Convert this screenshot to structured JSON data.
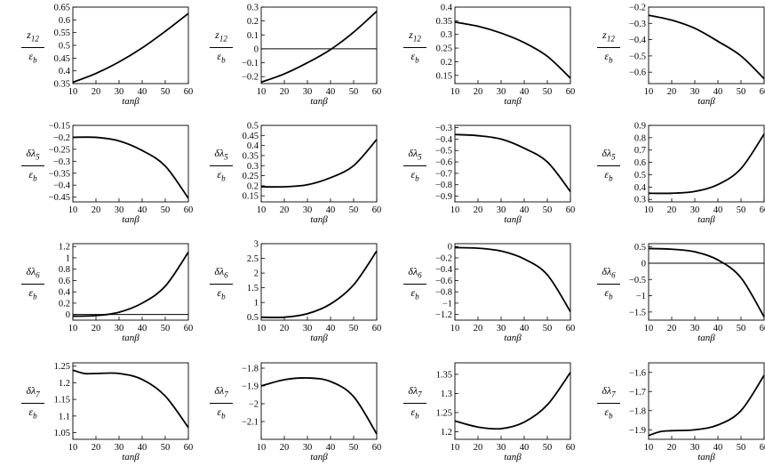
{
  "chart_data": [
    {
      "type": "line",
      "ylabel_num": "z12",
      "ylabel_den": "εb",
      "xlabel": "tanβ",
      "xlim": [
        10,
        60
      ],
      "ylim": [
        0.35,
        0.65
      ],
      "yticks": [
        "0.35",
        "0.4",
        "0.45",
        "0.5",
        "0.55",
        "0.6",
        "0.65"
      ],
      "xticks": [
        "10",
        "20",
        "30",
        "40",
        "50",
        "60"
      ],
      "zero_line": false,
      "x": [
        10,
        20,
        30,
        40,
        50,
        60
      ],
      "y": [
        0.355,
        0.39,
        0.435,
        0.49,
        0.555,
        0.625
      ]
    },
    {
      "type": "line",
      "ylabel_num": "z12",
      "ylabel_den": "εb",
      "xlabel": "tanβ",
      "xlim": [
        10,
        60
      ],
      "ylim": [
        -0.25,
        0.3
      ],
      "yticks": [
        "-0.2",
        "-0.1",
        "0",
        "0.1",
        "0.2",
        "0.3"
      ],
      "xticks": [
        "10",
        "20",
        "30",
        "40",
        "50",
        "60"
      ],
      "zero_line": true,
      "x": [
        10,
        20,
        30,
        40,
        50,
        60
      ],
      "y": [
        -0.24,
        -0.18,
        -0.1,
        -0.005,
        0.12,
        0.27
      ]
    },
    {
      "type": "line",
      "ylabel_num": "z12",
      "ylabel_den": "εb",
      "xlabel": "tanβ",
      "xlim": [
        10,
        60
      ],
      "ylim": [
        0.12,
        0.4
      ],
      "yticks": [
        "0.15",
        "0.2",
        "0.25",
        "0.3",
        "0.35",
        "0.4"
      ],
      "xticks": [
        "10",
        "20",
        "30",
        "40",
        "50",
        "60"
      ],
      "zero_line": false,
      "x": [
        10,
        20,
        30,
        40,
        50,
        60
      ],
      "y": [
        0.345,
        0.33,
        0.305,
        0.27,
        0.22,
        0.14
      ]
    },
    {
      "type": "line",
      "ylabel_num": "z12",
      "ylabel_den": "εb",
      "xlabel": "tanβ",
      "xlim": [
        10,
        60
      ],
      "ylim": [
        -0.67,
        -0.2
      ],
      "yticks": [
        "-0.2",
        "-0.3",
        "-0.4",
        "-0.5",
        "-0.6"
      ],
      "xticks": [
        "10",
        "20",
        "30",
        "40",
        "50",
        "60"
      ],
      "zero_line": false,
      "x": [
        10,
        20,
        30,
        40,
        50,
        60
      ],
      "y": [
        -0.25,
        -0.28,
        -0.33,
        -0.41,
        -0.5,
        -0.64
      ]
    },
    {
      "type": "line",
      "ylabel_num": "δλ5",
      "ylabel_den": "εb",
      "xlabel": "tanβ",
      "xlim": [
        10,
        60
      ],
      "ylim": [
        -0.47,
        -0.15
      ],
      "yticks": [
        "-0.15",
        "-0.2",
        "-0.25",
        "-0.3",
        "-0.35",
        "-0.4",
        "-0.45"
      ],
      "xticks": [
        "10",
        "20",
        "30",
        "40",
        "50",
        "60"
      ],
      "zero_line": false,
      "x": [
        10,
        20,
        30,
        40,
        50,
        60
      ],
      "y": [
        -0.2,
        -0.2,
        -0.215,
        -0.255,
        -0.32,
        -0.455
      ]
    },
    {
      "type": "line",
      "ylabel_num": "δλ5",
      "ylabel_den": "εb",
      "xlabel": "tanβ",
      "xlim": [
        10,
        60
      ],
      "ylim": [
        0.12,
        0.5
      ],
      "yticks": [
        "0.15",
        "0.2",
        "0.25",
        "0.3",
        "0.35",
        "0.4",
        "0.45",
        "0.5"
      ],
      "xticks": [
        "10",
        "20",
        "30",
        "40",
        "50",
        "60"
      ],
      "zero_line": false,
      "x": [
        10,
        20,
        30,
        40,
        50,
        60
      ],
      "y": [
        0.195,
        0.195,
        0.205,
        0.24,
        0.3,
        0.43
      ]
    },
    {
      "type": "line",
      "ylabel_num": "δλ5",
      "ylabel_den": "εb",
      "xlabel": "tanβ",
      "xlim": [
        10,
        60
      ],
      "ylim": [
        -0.95,
        -0.28
      ],
      "yticks": [
        "-0.3",
        "-0.4",
        "-0.5",
        "-0.6",
        "-0.7",
        "-0.8",
        "-0.9"
      ],
      "xticks": [
        "10",
        "20",
        "30",
        "40",
        "50",
        "60"
      ],
      "zero_line": false,
      "x": [
        10,
        20,
        30,
        40,
        50,
        60
      ],
      "y": [
        -0.36,
        -0.37,
        -0.4,
        -0.48,
        -0.6,
        -0.86
      ]
    },
    {
      "type": "line",
      "ylabel_num": "δλ5",
      "ylabel_den": "εb",
      "xlabel": "tanβ",
      "xlim": [
        10,
        60
      ],
      "ylim": [
        0.28,
        0.9
      ],
      "yticks": [
        "0.3",
        "0.4",
        "0.5",
        "0.6",
        "0.7",
        "0.8",
        "0.9"
      ],
      "xticks": [
        "10",
        "20",
        "30",
        "40",
        "50",
        "60"
      ],
      "zero_line": false,
      "x": [
        10,
        20,
        30,
        40,
        50,
        60
      ],
      "y": [
        0.35,
        0.35,
        0.365,
        0.42,
        0.55,
        0.83
      ]
    },
    {
      "type": "line",
      "ylabel_num": "δλ6",
      "ylabel_den": "εb",
      "xlabel": "tanβ",
      "xlim": [
        10,
        60
      ],
      "ylim": [
        -0.1,
        1.25
      ],
      "yticks": [
        "0",
        "0.2",
        "0.4",
        "0.6",
        "0.8",
        "1",
        "1.2"
      ],
      "xticks": [
        "10",
        "20",
        "30",
        "40",
        "50",
        "60"
      ],
      "zero_line": true,
      "x": [
        10,
        20,
        30,
        40,
        50,
        60
      ],
      "y": [
        -0.03,
        -0.02,
        0.04,
        0.2,
        0.5,
        1.1
      ]
    },
    {
      "type": "line",
      "ylabel_num": "δλ6",
      "ylabel_den": "εb",
      "xlabel": "tanβ",
      "xlim": [
        10,
        60
      ],
      "ylim": [
        0.4,
        3
      ],
      "yticks": [
        "0.5",
        "1",
        "1.5",
        "2",
        "2.5",
        "3"
      ],
      "xticks": [
        "10",
        "20",
        "30",
        "40",
        "50",
        "60"
      ],
      "zero_line": false,
      "x": [
        10,
        20,
        30,
        40,
        50,
        60
      ],
      "y": [
        0.5,
        0.5,
        0.62,
        0.95,
        1.6,
        2.75
      ]
    },
    {
      "type": "line",
      "ylabel_num": "δλ6",
      "ylabel_den": "εb",
      "xlabel": "tanβ",
      "xlim": [
        10,
        60
      ],
      "ylim": [
        -1.3,
        0.05
      ],
      "yticks": [
        "0",
        "-0.2",
        "-0.4",
        "-0.6",
        "-0.8",
        "-1",
        "-1.2"
      ],
      "xticks": [
        "10",
        "20",
        "30",
        "40",
        "50",
        "60"
      ],
      "zero_line": false,
      "x": [
        10,
        20,
        30,
        40,
        50,
        60
      ],
      "y": [
        -0.02,
        -0.03,
        -0.08,
        -0.22,
        -0.5,
        -1.15
      ]
    },
    {
      "type": "line",
      "ylabel_num": "δλ6",
      "ylabel_den": "εb",
      "xlabel": "tanβ",
      "xlim": [
        10,
        60
      ],
      "ylim": [
        -1.75,
        0.6
      ],
      "yticks": [
        "0.5",
        "0",
        "-0.5",
        "-1",
        "-1.5"
      ],
      "xticks": [
        "10",
        "20",
        "30",
        "40",
        "50",
        "60"
      ],
      "zero_line": true,
      "x": [
        10,
        20,
        30,
        40,
        50,
        60
      ],
      "y": [
        0.45,
        0.43,
        0.35,
        0.1,
        -0.45,
        -1.65
      ]
    },
    {
      "type": "line",
      "ylabel_num": "δλ7",
      "ylabel_den": "εb",
      "xlabel": "tanβ",
      "xlim": [
        10,
        60
      ],
      "ylim": [
        1.03,
        1.26
      ],
      "yticks": [
        "1.05",
        "1.1",
        "1.15",
        "1.2",
        "1.25"
      ],
      "xticks": [
        "10",
        "20",
        "30",
        "40",
        "50",
        "60"
      ],
      "zero_line": false,
      "x": [
        10,
        15,
        20,
        30,
        40,
        50,
        60
      ],
      "y": [
        1.238,
        1.228,
        1.228,
        1.228,
        1.21,
        1.16,
        1.065
      ]
    },
    {
      "type": "line",
      "ylabel_num": "δλ7",
      "ylabel_den": "εb",
      "xlabel": "tanβ",
      "xlim": [
        10,
        60
      ],
      "ylim": [
        -2.2,
        -1.77
      ],
      "yticks": [
        "-1.8",
        "-1.9",
        "-2",
        "-2.1"
      ],
      "xticks": [
        "10",
        "20",
        "30",
        "40",
        "50",
        "60"
      ],
      "zero_line": false,
      "x": [
        10,
        20,
        30,
        40,
        50,
        60
      ],
      "y": [
        -1.9,
        -1.865,
        -1.855,
        -1.875,
        -1.96,
        -2.17
      ]
    },
    {
      "type": "line",
      "ylabel_num": "δλ7",
      "ylabel_den": "εb",
      "xlabel": "tanβ",
      "xlim": [
        10,
        60
      ],
      "ylim": [
        1.18,
        1.38
      ],
      "yticks": [
        "1.2",
        "1.25",
        "1.3",
        "1.35"
      ],
      "xticks": [
        "10",
        "20",
        "30",
        "40",
        "50",
        "60"
      ],
      "zero_line": false,
      "x": [
        10,
        20,
        30,
        40,
        50,
        60
      ],
      "y": [
        1.228,
        1.212,
        1.208,
        1.225,
        1.27,
        1.355
      ]
    },
    {
      "type": "line",
      "ylabel_num": "δλ7",
      "ylabel_den": "εb",
      "xlabel": "tanβ",
      "xlim": [
        10,
        60
      ],
      "ylim": [
        -1.95,
        -1.55
      ],
      "yticks": [
        "-1.6",
        "-1.7",
        "-1.8",
        "-1.9"
      ],
      "xticks": [
        "10",
        "20",
        "30",
        "40",
        "50",
        "60"
      ],
      "zero_line": false,
      "x": [
        10,
        15,
        20,
        30,
        40,
        50,
        60
      ],
      "y": [
        -1.93,
        -1.91,
        -1.905,
        -1.9,
        -1.875,
        -1.8,
        -1.615
      ]
    }
  ]
}
